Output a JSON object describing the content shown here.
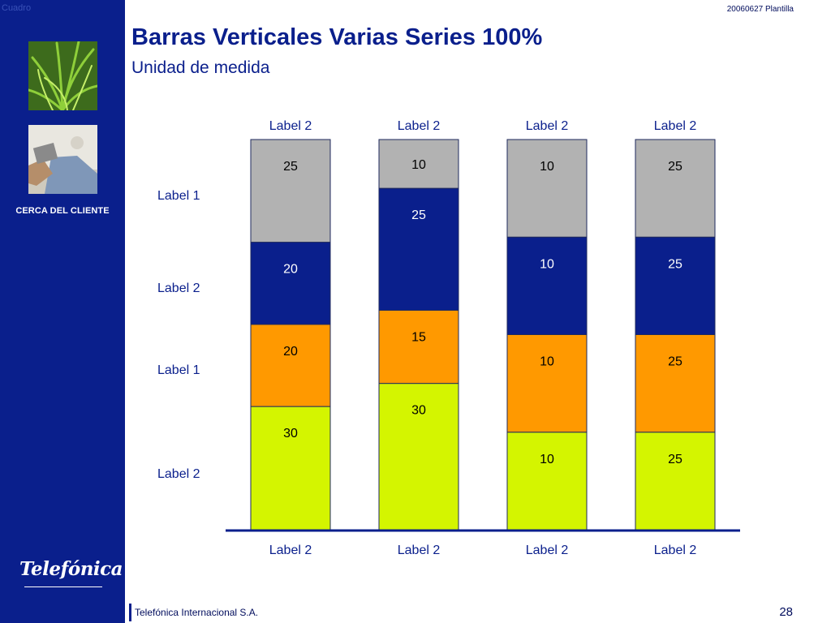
{
  "header": {
    "corner_mark": "Cuadro",
    "doc_ref": "20060627 Plantilla",
    "title": "Barras Verticales Varias Series 100%",
    "subtitle": "Unidad de medida"
  },
  "sidebar": {
    "section_label": "CERCA DEL CLIENTE",
    "brand": "Telefónica"
  },
  "footer": {
    "company": "Telefónica Internacional S.A.",
    "page_number": "28"
  },
  "colors": {
    "navy": "#0a1f8c",
    "grey": "#b2b2b2",
    "orange": "#ff9900",
    "lime": "#d4f500"
  },
  "chart_data": {
    "type": "bar",
    "stacked": true,
    "normalized_100_percent": true,
    "categories": [
      "Label 2",
      "Label 2",
      "Label 2",
      "Label 2"
    ],
    "top_labels": [
      "Label 2",
      "Label 2",
      "Label 2",
      "Label 2"
    ],
    "row_labels": [
      "Label 1",
      "Label 2",
      "Label 1",
      "Label 2"
    ],
    "series": [
      {
        "values": [
          30,
          30,
          10,
          25
        ],
        "color": "#d4f500"
      },
      {
        "values": [
          20,
          15,
          10,
          25
        ],
        "color": "#ff9900"
      },
      {
        "values": [
          20,
          25,
          10,
          25
        ],
        "color": "#0a1f8c"
      },
      {
        "values": [
          25,
          10,
          10,
          25
        ],
        "color": "#b2b2b2"
      }
    ]
  }
}
